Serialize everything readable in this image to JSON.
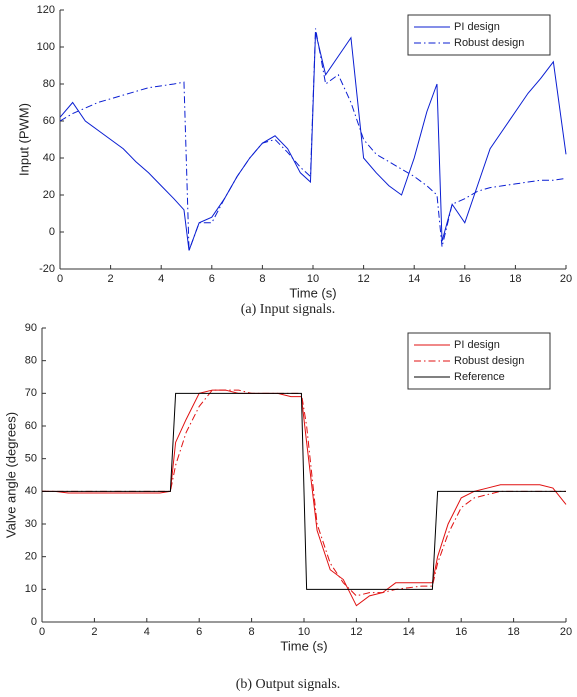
{
  "chart_data": [
    {
      "type": "line",
      "caption": "(a) Input signals.",
      "xlabel": "Time (s)",
      "ylabel": "Input (PWM)",
      "x": [
        0,
        0.5,
        1,
        1.5,
        2,
        2.5,
        3,
        3.5,
        4,
        4.5,
        4.9,
        5.1,
        5.5,
        6,
        6.5,
        7,
        7.5,
        8,
        8.5,
        9,
        9.5,
        9.9,
        10.1,
        10.5,
        11,
        11.5,
        12,
        12.5,
        13,
        13.5,
        14,
        14.5,
        14.9,
        15.1,
        15.5,
        16,
        16.5,
        17,
        17.5,
        18,
        18.5,
        19,
        19.5,
        20
      ],
      "series": [
        {
          "name": "PI design",
          "color": "#0a1ed2",
          "line_style": "solid",
          "values": [
            62,
            70,
            60,
            55,
            50,
            45,
            38,
            32,
            25,
            18,
            12,
            -10,
            5,
            8,
            18,
            30,
            40,
            48,
            52,
            45,
            32,
            27,
            108,
            85,
            95,
            105,
            40,
            32,
            25,
            20,
            40,
            65,
            80,
            -5,
            15,
            5,
            25,
            45,
            55,
            65,
            75,
            83,
            92,
            42
          ]
        },
        {
          "name": "Robust design",
          "color": "#0a1ed2",
          "line_style": "dashdot",
          "values": [
            60,
            64,
            67,
            70,
            72,
            74,
            76,
            78,
            79,
            80,
            81,
            -10,
            5,
            5,
            18,
            30,
            40,
            48,
            50,
            43,
            35,
            30,
            110,
            80,
            85,
            70,
            50,
            42,
            38,
            34,
            30,
            25,
            20,
            -8,
            15,
            18,
            22,
            24,
            25,
            26,
            27,
            28,
            28,
            29
          ]
        }
      ],
      "xlim": [
        0,
        20
      ],
      "xticks": [
        0,
        2,
        4,
        6,
        8,
        10,
        12,
        14,
        16,
        18,
        20
      ],
      "ylim": [
        -20,
        120
      ],
      "yticks": [
        -20,
        0,
        20,
        40,
        60,
        80,
        100,
        120
      ],
      "legend": "upper-right"
    },
    {
      "type": "line",
      "caption": "(b) Output signals.",
      "xlabel": "Time (s)",
      "ylabel": "Valve angle (degrees)",
      "x": [
        0,
        0.5,
        1,
        1.5,
        2,
        2.5,
        3,
        3.5,
        4,
        4.5,
        4.9,
        5.1,
        5.5,
        6,
        6.5,
        7,
        7.5,
        8,
        8.5,
        9,
        9.5,
        9.9,
        10.1,
        10.5,
        11,
        11.5,
        12,
        12.5,
        13,
        13.5,
        14,
        14.5,
        14.9,
        15.1,
        15.5,
        16,
        16.5,
        17,
        17.5,
        18,
        18.5,
        19,
        19.5,
        20
      ],
      "series": [
        {
          "name": "PI design",
          "color": "#e01010",
          "line_style": "solid",
          "values": [
            40,
            40,
            39.5,
            39.5,
            39.5,
            39.5,
            39.5,
            39.5,
            39.5,
            39.5,
            40,
            55,
            62,
            70,
            71,
            71,
            70,
            70,
            70,
            70,
            69,
            69,
            55,
            28,
            16,
            13,
            5,
            8,
            9,
            12,
            12,
            12,
            12,
            20,
            30,
            38,
            40,
            41,
            42,
            42,
            42,
            42,
            41,
            36
          ]
        },
        {
          "name": "Robust design",
          "color": "#e01010",
          "line_style": "dashdot",
          "values": [
            40,
            40,
            40,
            40,
            40,
            40,
            40,
            40,
            40,
            40,
            40,
            48,
            58,
            66,
            71,
            71,
            71,
            70,
            70,
            70,
            70,
            70,
            60,
            30,
            18,
            12,
            8,
            9,
            9,
            10,
            10.5,
            11,
            11,
            18,
            27,
            35,
            38,
            39,
            40,
            40,
            40,
            40,
            40,
            40
          ]
        },
        {
          "name": "Reference",
          "color": "#000000",
          "line_style": "solid",
          "values": [
            40,
            40,
            40,
            40,
            40,
            40,
            40,
            40,
            40,
            40,
            40,
            70,
            70,
            70,
            70,
            70,
            70,
            70,
            70,
            70,
            70,
            70,
            10,
            10,
            10,
            10,
            10,
            10,
            10,
            10,
            10,
            10,
            10,
            40,
            40,
            40,
            40,
            40,
            40,
            40,
            40,
            40,
            40,
            40
          ]
        }
      ],
      "xlim": [
        0,
        20
      ],
      "xticks": [
        0,
        2,
        4,
        6,
        8,
        10,
        12,
        14,
        16,
        18,
        20
      ],
      "ylim": [
        0,
        90
      ],
      "yticks": [
        0,
        10,
        20,
        30,
        40,
        50,
        60,
        70,
        80,
        90
      ],
      "legend": "upper-right"
    }
  ]
}
